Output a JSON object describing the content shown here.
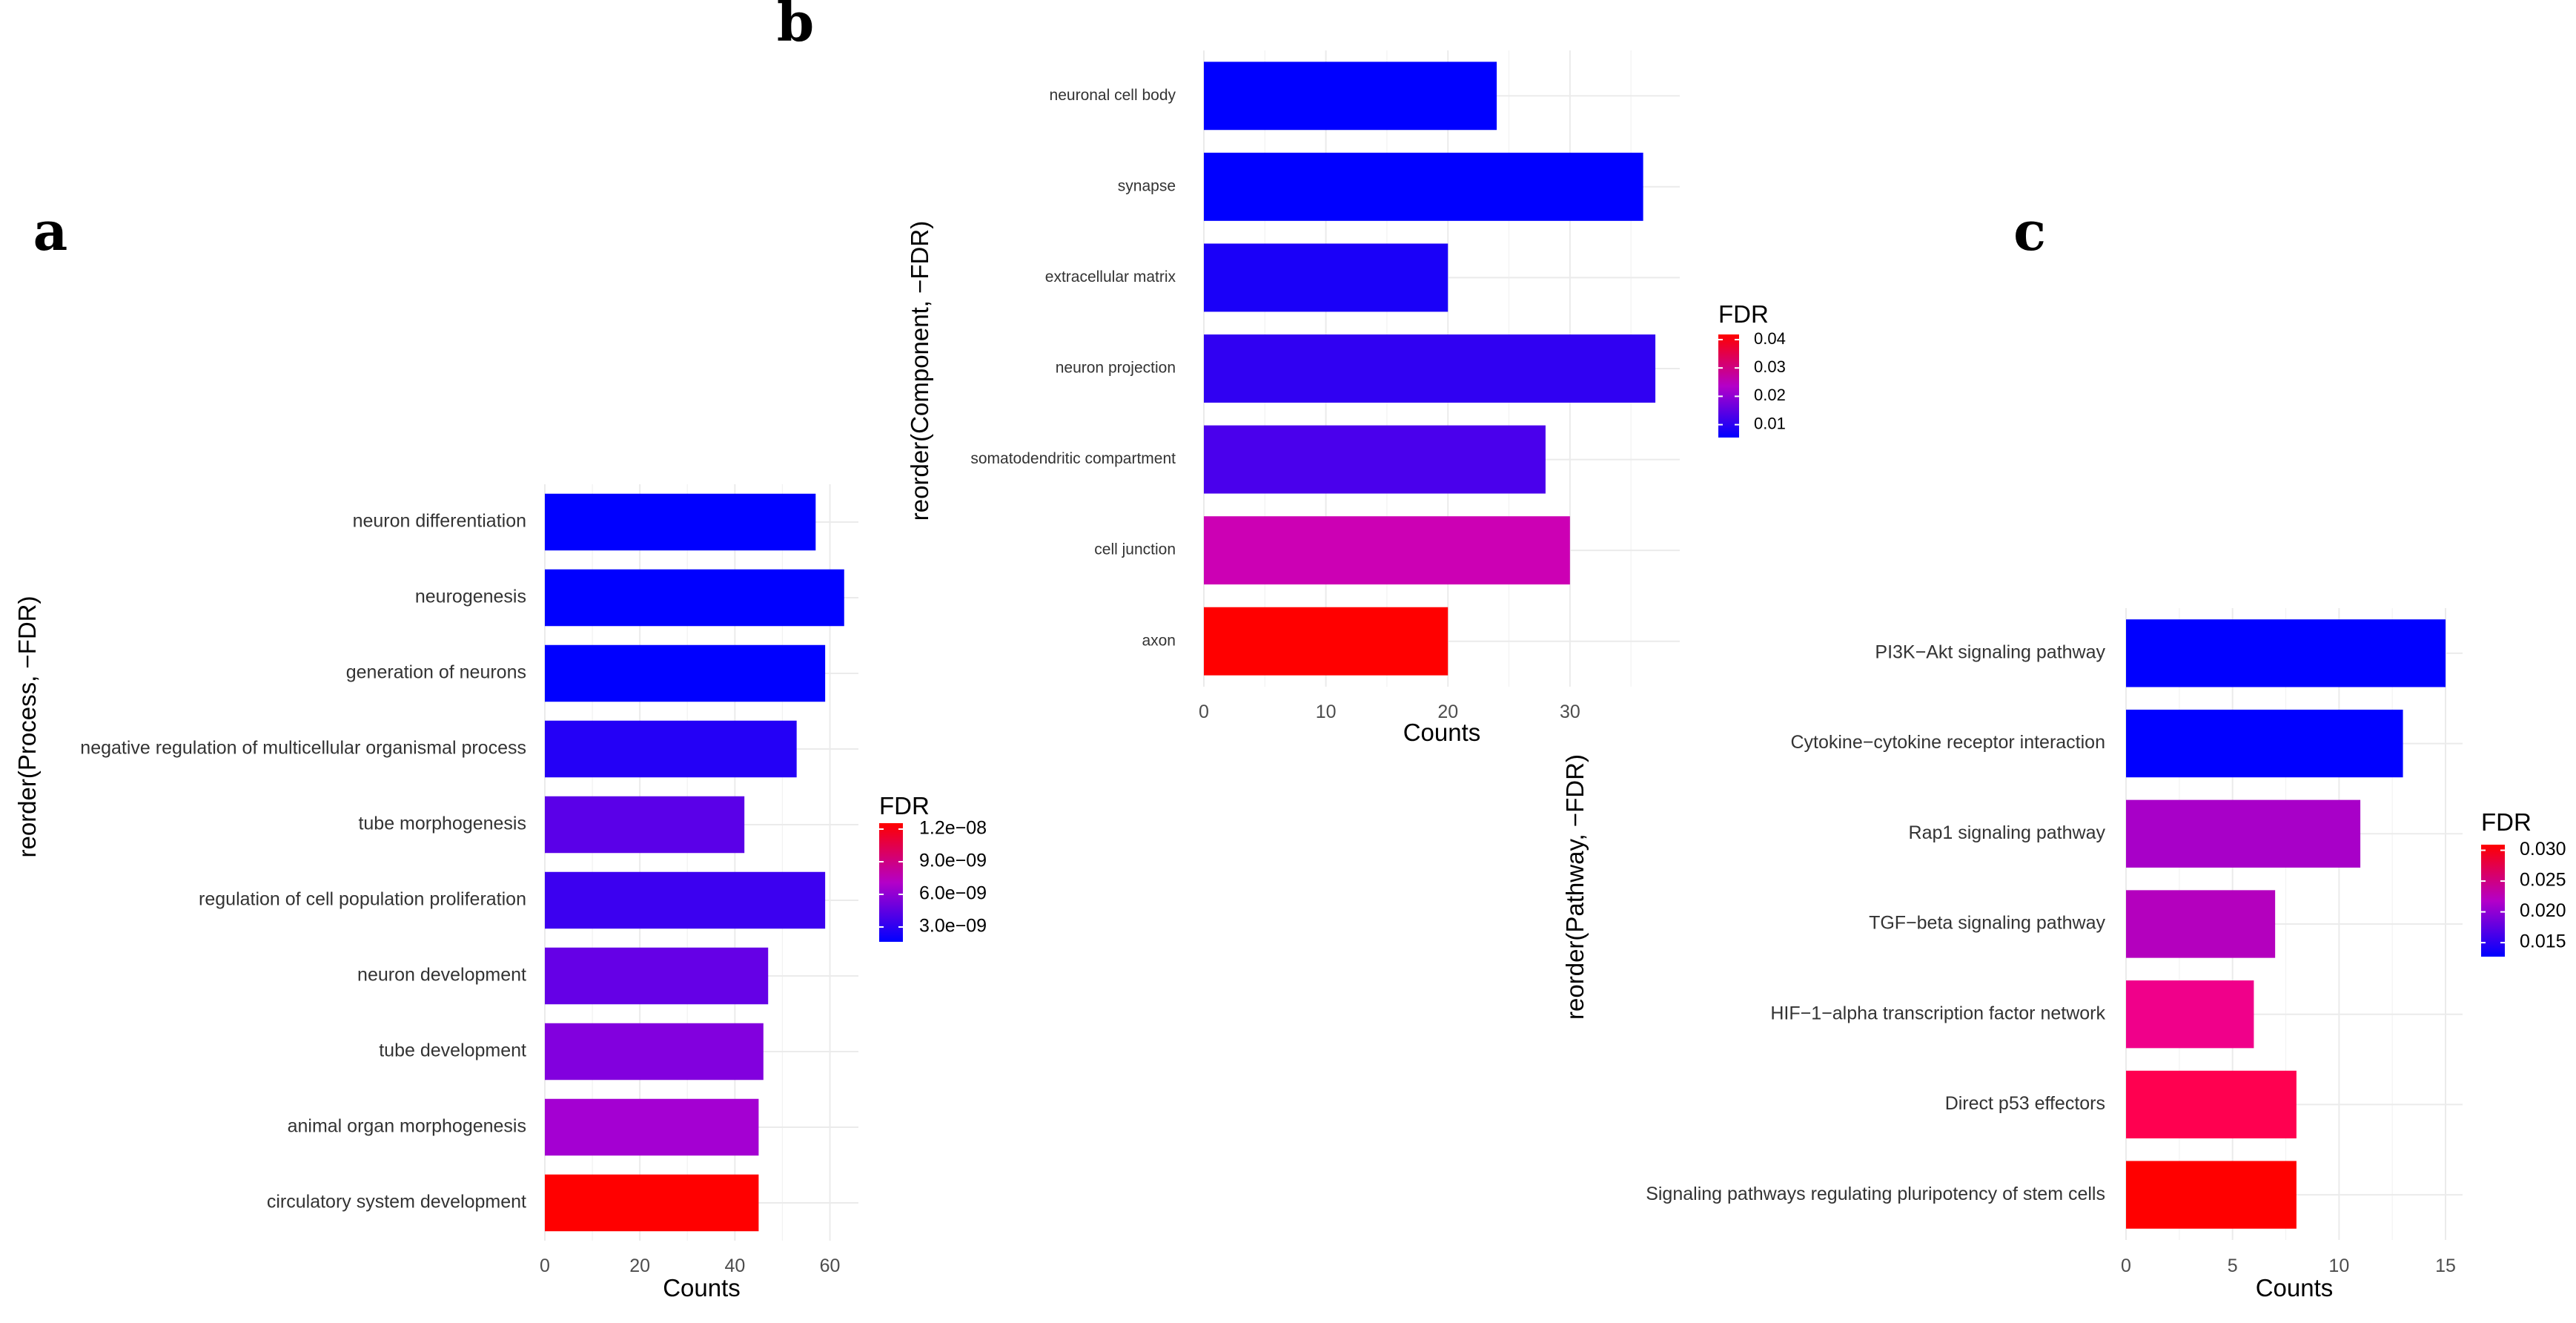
{
  "chart_data": [
    {
      "panel": "a",
      "type": "bar",
      "orientation": "horizontal",
      "categories": [
        "neuron differentiation",
        "neurogenesis",
        "generation of neurons",
        "negative regulation of multicellular organismal process",
        "tube morphogenesis",
        "regulation of cell population proliferation",
        "neuron development",
        "tube development",
        "animal organ morphogenesis",
        "circulatory system development"
      ],
      "values": [
        57,
        63,
        59,
        53,
        42,
        59,
        47,
        46,
        45,
        45
      ],
      "colors": [
        "#0000FF",
        "#0000FF",
        "#0000FF",
        "#2400F6",
        "#5A00E8",
        "#3C00F0",
        "#6500E6",
        "#8200DE",
        "#A400D2",
        "#FF0000"
      ],
      "xlabel": "Counts",
      "ylabel": "reorder(Process, −FDR)",
      "xticks": [
        0,
        20,
        40,
        60
      ],
      "xlim": [
        0,
        66
      ],
      "legend": {
        "title": "FDR",
        "ticks": [
          "1.2e−08",
          "9.0e−09",
          "6.0e−09",
          "3.0e−09"
        ],
        "low_color": "#0000FF",
        "high_color": "#FF0000"
      }
    },
    {
      "panel": "b",
      "type": "bar",
      "orientation": "horizontal",
      "categories": [
        "neuronal cell body",
        "synapse",
        "extracellular matrix",
        "neuron projection",
        "somatodendritic compartment",
        "cell junction",
        "axon"
      ],
      "values": [
        24,
        36,
        20,
        37,
        28,
        30,
        20
      ],
      "colors": [
        "#0000FF",
        "#0000FF",
        "#1A00F8",
        "#3000F2",
        "#4A00EC",
        "#CC00B4",
        "#FF0000"
      ],
      "xlabel": "Counts",
      "ylabel": "reorder(Component, −FDR)",
      "xticks": [
        0,
        10,
        20,
        30
      ],
      "xlim": [
        0,
        39
      ],
      "legend": {
        "title": "FDR",
        "ticks": [
          "0.04",
          "0.03",
          "0.02",
          "0.01"
        ],
        "low_color": "#0000FF",
        "high_color": "#FF0000"
      }
    },
    {
      "panel": "c",
      "type": "bar",
      "orientation": "horizontal",
      "categories": [
        "PI3K−Akt signaling pathway",
        "Cytokine−cytokine receptor interaction",
        "Rap1 signaling pathway",
        "TGF−beta signaling pathway",
        "HIF−1−alpha transcription factor network",
        "Direct p53 effectors",
        "Signaling pathways regulating pluripotency of stem cells"
      ],
      "values": [
        15,
        13,
        11,
        7,
        6,
        8,
        8
      ],
      "colors": [
        "#0000FF",
        "#0000FF",
        "#A800C8",
        "#B400BE",
        "#F0008A",
        "#FF0050",
        "#FF0000"
      ],
      "xlabel": "Counts",
      "ylabel": "reorder(Pathway, −FDR)",
      "xticks": [
        0,
        5,
        10,
        15
      ],
      "xlim": [
        0,
        15.8
      ],
      "legend": {
        "title": "FDR",
        "ticks": [
          "0.030",
          "0.025",
          "0.020",
          "0.015"
        ],
        "low_color": "#0000FF",
        "high_color": "#FF0000"
      }
    }
  ]
}
